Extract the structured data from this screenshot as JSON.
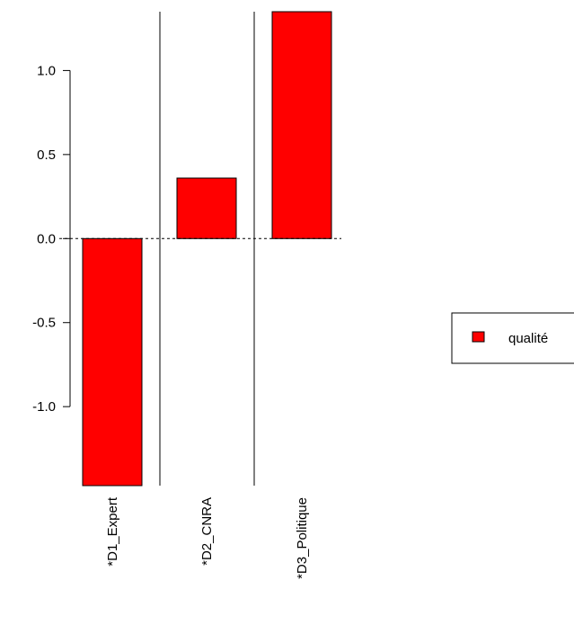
{
  "chart_data": {
    "type": "bar",
    "categories": [
      "*D1_Expert",
      "*D2_CNRA",
      "*D3_Politique"
    ],
    "series": [
      {
        "name": "qualité",
        "values": [
          -1.47,
          0.36,
          1.35
        ],
        "color": "#ff0000"
      }
    ],
    "yticks": [
      1.0,
      0.5,
      0.0,
      -0.5,
      -1.0
    ],
    "ytick_labels": [
      "1.0",
      "0.5",
      "0.0",
      "-0.5",
      "-1.0"
    ],
    "ylim": [
      -1.47,
      1.35
    ],
    "reference_line": 0,
    "legend_position": "right",
    "grid": false
  }
}
